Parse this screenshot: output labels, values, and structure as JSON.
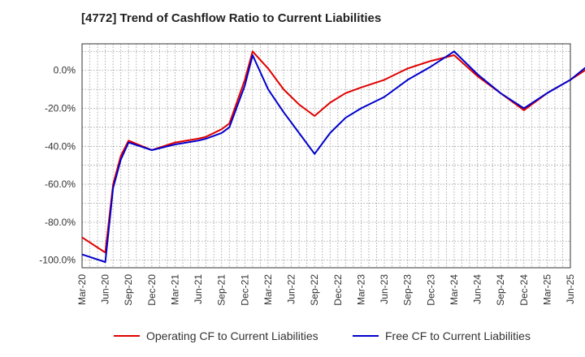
{
  "chart_data": {
    "type": "line",
    "title": "[4772]  Trend of Cashflow Ratio to Current Liabilities",
    "xlabel": "",
    "ylabel": "",
    "ylim": [
      -104,
      14
    ],
    "y_ticks": [
      0,
      -20,
      -40,
      -60,
      -80,
      -100
    ],
    "y_tick_labels": [
      "0.0%",
      "-20.0%",
      "-40.0%",
      "-60.0%",
      "-80.0%",
      "-100.0%"
    ],
    "x_tick_labels": [
      "Mar-20",
      "Jun-20",
      "Sep-20",
      "Dec-20",
      "Mar-21",
      "Jun-21",
      "Sep-21",
      "Dec-21",
      "Mar-22",
      "Jun-22",
      "Sep-22",
      "Dec-22",
      "Mar-23",
      "Jun-23",
      "Sep-23",
      "Dec-23",
      "Mar-24",
      "Jun-24",
      "Sep-24",
      "Dec-24",
      "Mar-25",
      "Jun-25"
    ],
    "grid": true,
    "legend_position": "bottom",
    "series": [
      {
        "name": "Operating CF to Current Liabilities",
        "color": "#e00000",
        "points": [
          [
            0,
            -88
          ],
          [
            3,
            -96
          ],
          [
            4,
            -60
          ],
          [
            5,
            -45
          ],
          [
            6,
            -37
          ],
          [
            9,
            -42
          ],
          [
            12,
            -38
          ],
          [
            15,
            -36
          ],
          [
            16,
            -35
          ],
          [
            18,
            -31
          ],
          [
            19,
            -28
          ],
          [
            21,
            -5
          ],
          [
            22,
            10
          ],
          [
            24,
            1
          ],
          [
            26,
            -10
          ],
          [
            28,
            -18
          ],
          [
            30,
            -24
          ],
          [
            32,
            -17
          ],
          [
            34,
            -12
          ],
          [
            36,
            -9
          ],
          [
            39,
            -5
          ],
          [
            42,
            1
          ],
          [
            45,
            5
          ],
          [
            48,
            8
          ],
          [
            51,
            -3
          ],
          [
            54,
            -12
          ],
          [
            57,
            -21
          ],
          [
            60,
            -12
          ],
          [
            63,
            -5
          ],
          [
            66,
            3
          ],
          [
            69,
            -1
          ],
          [
            72,
            -5
          ],
          [
            75,
            -9
          ]
        ]
      },
      {
        "name": "Free CF to Current Liabilities",
        "color": "#0000cc",
        "points": [
          [
            0,
            -97
          ],
          [
            3,
            -101
          ],
          [
            4,
            -62
          ],
          [
            5,
            -47
          ],
          [
            6,
            -38
          ],
          [
            9,
            -42
          ],
          [
            12,
            -39
          ],
          [
            15,
            -37
          ],
          [
            16,
            -36
          ],
          [
            18,
            -33
          ],
          [
            19,
            -30
          ],
          [
            21,
            -8
          ],
          [
            22,
            8
          ],
          [
            24,
            -10
          ],
          [
            26,
            -22
          ],
          [
            28,
            -33
          ],
          [
            30,
            -44
          ],
          [
            32,
            -33
          ],
          [
            34,
            -25
          ],
          [
            36,
            -20
          ],
          [
            39,
            -14
          ],
          [
            40,
            -11
          ],
          [
            42,
            -5
          ],
          [
            45,
            2
          ],
          [
            48,
            10
          ],
          [
            51,
            -2
          ],
          [
            54,
            -12
          ],
          [
            57,
            -20
          ],
          [
            60,
            -12
          ],
          [
            63,
            -5
          ],
          [
            66,
            5
          ],
          [
            69,
            4
          ],
          [
            72,
            3
          ],
          [
            75,
            1
          ]
        ]
      }
    ]
  }
}
